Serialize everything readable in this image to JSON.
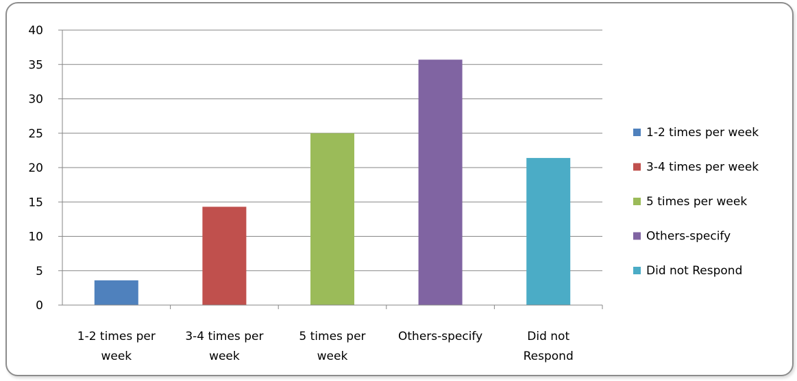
{
  "chart_data": {
    "type": "bar",
    "categories": [
      [
        "1-2 times per",
        "week"
      ],
      [
        "3-4 times per",
        "week"
      ],
      [
        "5 times per",
        "week"
      ],
      [
        "Others-specify"
      ],
      [
        "Did not",
        "Respond"
      ]
    ],
    "values": [
      3.6,
      14.3,
      25.0,
      35.7,
      21.4
    ],
    "colors": [
      "#4f81bd",
      "#c0504d",
      "#9bbb59",
      "#8064a2",
      "#4bacc6"
    ],
    "ylim": [
      0,
      40
    ],
    "yticks": [
      0,
      5,
      10,
      15,
      20,
      25,
      30,
      35,
      40
    ],
    "grid": true,
    "legend": {
      "placement": "right",
      "entries": [
        "1-2 times per week",
        "3-4 times per week",
        "5 times per week",
        "Others-specify",
        "Did not Respond"
      ]
    }
  }
}
